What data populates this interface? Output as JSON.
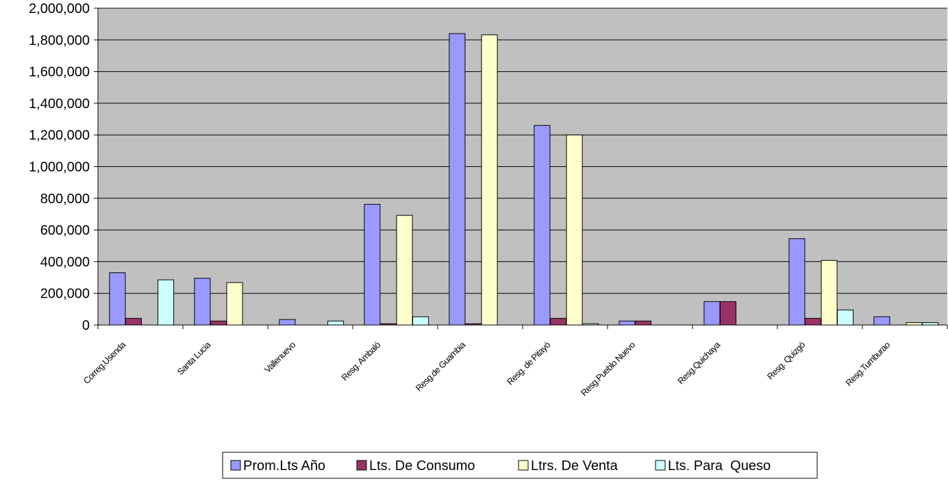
{
  "chart_data": {
    "type": "bar",
    "title": "",
    "xlabel": "",
    "ylabel": "",
    "ylim": [
      0,
      2000000
    ],
    "yticks": [
      0,
      200000,
      400000,
      600000,
      800000,
      1000000,
      1200000,
      1400000,
      1600000,
      1800000,
      2000000
    ],
    "ytick_labels": [
      "0",
      "200,000",
      "400,000",
      "600,000",
      "800,000",
      "1,000,000",
      "1,200,000",
      "1,400,000",
      "1,600,000",
      "1,800,000",
      "2,000,000"
    ],
    "grid": true,
    "legend_position": "bottom",
    "categories": [
      "Correg.Usenda",
      "Santa Lucia",
      "Vallenuevo",
      "Resg. Ambaló",
      "Resg.de Guambia",
      "Resg. de Pitayó",
      "Resg.Pueblo Nuevo",
      "Resg.Quichaya",
      "Resg. Quizgó",
      "Resg.Tumburao"
    ],
    "series": [
      {
        "name": "Prom.Lts Año",
        "color": "#9999ff",
        "values": [
          330000,
          295000,
          35000,
          762000,
          1840000,
          1260000,
          25000,
          148000,
          545000,
          52000
        ]
      },
      {
        "name": "Lts. De Consumo",
        "color": "#993366",
        "values": [
          42000,
          25000,
          0,
          8000,
          8000,
          42000,
          25000,
          148000,
          42000,
          0
        ]
      },
      {
        "name": "Ltrs. De Venta",
        "color": "#ffffcc",
        "values": [
          0,
          268000,
          0,
          692000,
          1832000,
          1200000,
          0,
          0,
          408000,
          15000
        ]
      },
      {
        "name": "Lts. Para  Queso",
        "color": "#ccffff",
        "values": [
          285000,
          0,
          25000,
          52000,
          0,
          8000,
          0,
          0,
          95000,
          15000
        ]
      }
    ],
    "plot_background": "#c0c0c0"
  }
}
